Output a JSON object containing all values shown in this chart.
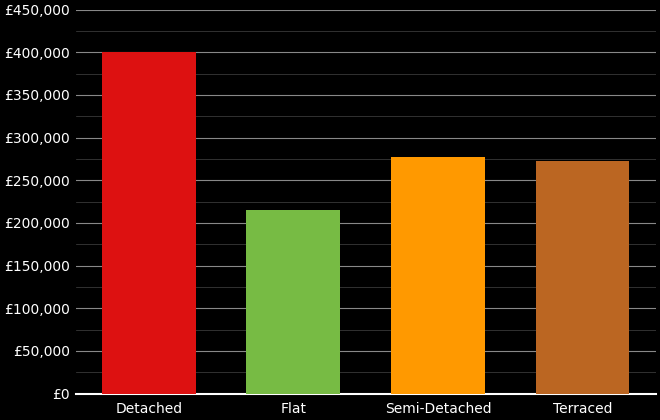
{
  "categories": [
    "Detached",
    "Flat",
    "Semi-Detached",
    "Terraced"
  ],
  "values": [
    400000,
    215000,
    277000,
    272000
  ],
  "bar_colors": [
    "#dd1111",
    "#77bb44",
    "#ff9900",
    "#bb6622"
  ],
  "background_color": "#000000",
  "text_color": "#ffffff",
  "grid_color": "#888888",
  "minor_grid_color": "#444444",
  "ylim": [
    0,
    450000
  ],
  "ytick_major_step": 50000,
  "ytick_minor_step": 25000,
  "bar_width": 0.65
}
